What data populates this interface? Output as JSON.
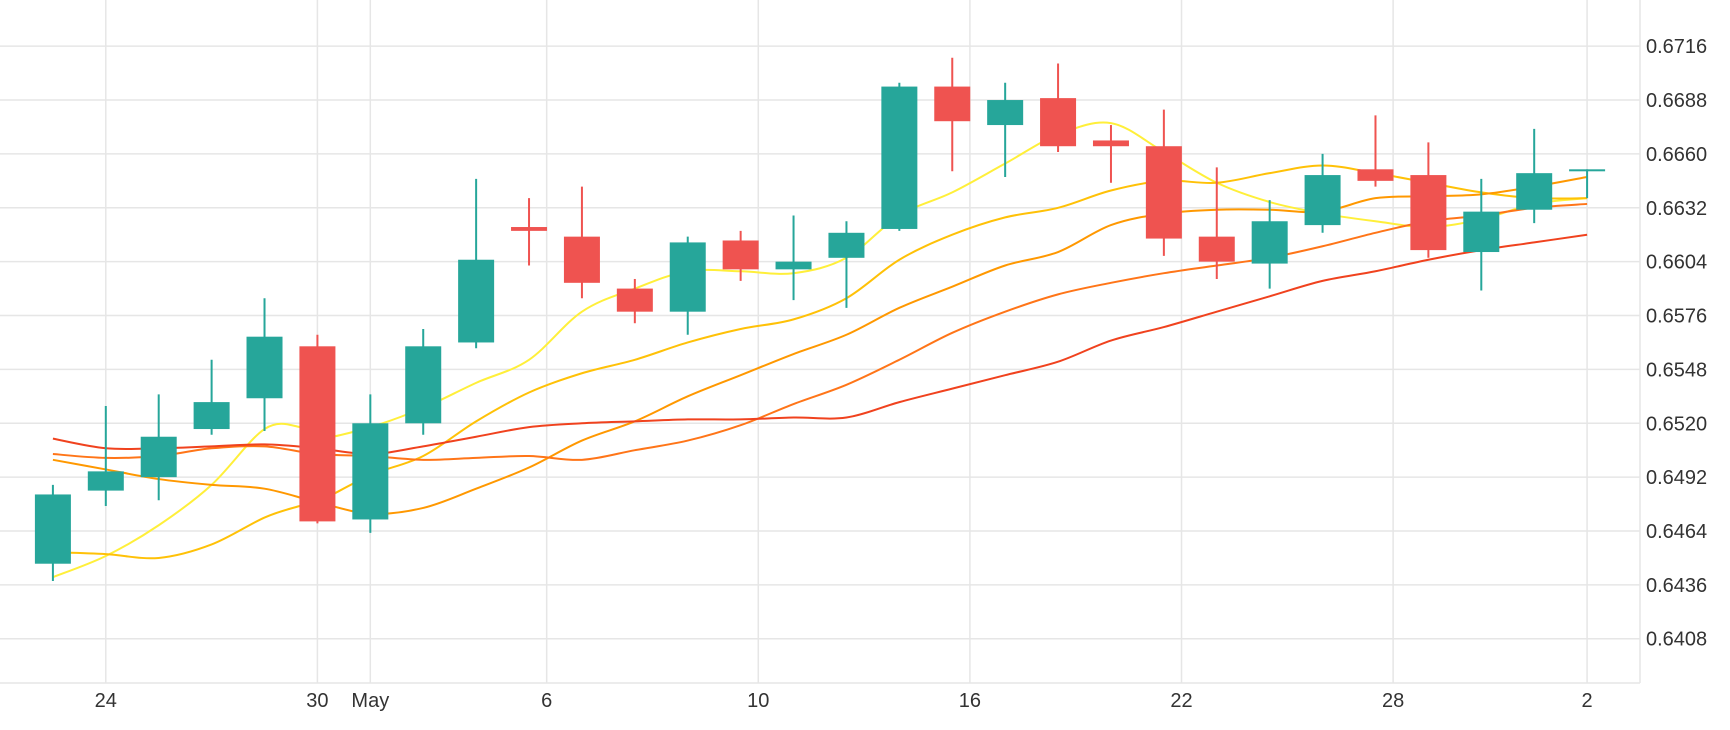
{
  "chart_data": {
    "type": "candlestick",
    "title": "",
    "xlabel": "",
    "ylabel": "",
    "x_ticks": [
      {
        "label": "24",
        "day": 1
      },
      {
        "label": "30",
        "day": 7
      },
      {
        "label": "May",
        "day": 8.5
      },
      {
        "label": "6",
        "day": 13.5
      },
      {
        "label": "10",
        "day": 19.5
      },
      {
        "label": "16",
        "day": 25.5
      },
      {
        "label": "22",
        "day": 31.5
      },
      {
        "label": "28",
        "day": 37.5
      },
      {
        "label": "2",
        "day": 43
      }
    ],
    "x_range": [
      -2,
      44.5
    ],
    "y_ticks": [
      "0.6408",
      "0.6436",
      "0.6464",
      "0.6492",
      "0.6520",
      "0.6548",
      "0.6576",
      "0.6604",
      "0.6632",
      "0.6660",
      "0.6688",
      "0.6716"
    ],
    "ylim": [
      0.6385,
      0.674
    ],
    "grid": true,
    "colors": {
      "up": "#26a69a",
      "down": "#ef5350",
      "grid": "#e6e6e6",
      "text": "#333333"
    },
    "candles": [
      {
        "x": -0.5,
        "o": 0.6447,
        "h": 0.6488,
        "l": 0.6438,
        "c": 0.6483
      },
      {
        "x": 1.0,
        "o": 0.6485,
        "h": 0.6529,
        "l": 0.6477,
        "c": 0.6495
      },
      {
        "x": 2.5,
        "o": 0.6492,
        "h": 0.6535,
        "l": 0.648,
        "c": 0.6513
      },
      {
        "x": 4.0,
        "o": 0.6517,
        "h": 0.6553,
        "l": 0.6514,
        "c": 0.6531
      },
      {
        "x": 5.5,
        "o": 0.6533,
        "h": 0.6585,
        "l": 0.6516,
        "c": 0.6565
      },
      {
        "x": 7.0,
        "o": 0.656,
        "h": 0.6566,
        "l": 0.6468,
        "c": 0.6469
      },
      {
        "x": 8.5,
        "o": 0.647,
        "h": 0.6535,
        "l": 0.6463,
        "c": 0.652
      },
      {
        "x": 10.0,
        "o": 0.652,
        "h": 0.6569,
        "l": 0.6514,
        "c": 0.656
      },
      {
        "x": 11.5,
        "o": 0.6562,
        "h": 0.6647,
        "l": 0.6559,
        "c": 0.6605
      },
      {
        "x": 13.0,
        "o": 0.6622,
        "h": 0.6637,
        "l": 0.6602,
        "c": 0.662
      },
      {
        "x": 14.5,
        "o": 0.6617,
        "h": 0.6643,
        "l": 0.6585,
        "c": 0.6593
      },
      {
        "x": 16.0,
        "o": 0.659,
        "h": 0.6595,
        "l": 0.6572,
        "c": 0.6578
      },
      {
        "x": 17.5,
        "o": 0.6578,
        "h": 0.6617,
        "l": 0.6566,
        "c": 0.6614
      },
      {
        "x": 19.0,
        "o": 0.6615,
        "h": 0.662,
        "l": 0.6594,
        "c": 0.66
      },
      {
        "x": 20.5,
        "o": 0.66,
        "h": 0.6628,
        "l": 0.6584,
        "c": 0.6604
      },
      {
        "x": 22.0,
        "o": 0.6606,
        "h": 0.6625,
        "l": 0.658,
        "c": 0.6619
      },
      {
        "x": 23.5,
        "o": 0.6621,
        "h": 0.6697,
        "l": 0.662,
        "c": 0.6695
      },
      {
        "x": 25.0,
        "o": 0.6695,
        "h": 0.671,
        "l": 0.6651,
        "c": 0.6677
      },
      {
        "x": 26.5,
        "o": 0.6675,
        "h": 0.6697,
        "l": 0.6648,
        "c": 0.6688
      },
      {
        "x": 28.0,
        "o": 0.6689,
        "h": 0.6707,
        "l": 0.6661,
        "c": 0.6664
      },
      {
        "x": 29.5,
        "o": 0.6667,
        "h": 0.6675,
        "l": 0.6645,
        "c": 0.6664
      },
      {
        "x": 31.0,
        "o": 0.6664,
        "h": 0.6683,
        "l": 0.6607,
        "c": 0.6616
      },
      {
        "x": 32.5,
        "o": 0.6617,
        "h": 0.6653,
        "l": 0.6595,
        "c": 0.6604
      },
      {
        "x": 34.0,
        "o": 0.6603,
        "h": 0.6636,
        "l": 0.659,
        "c": 0.6625
      },
      {
        "x": 35.5,
        "o": 0.6623,
        "h": 0.666,
        "l": 0.6619,
        "c": 0.6649
      },
      {
        "x": 37.0,
        "o": 0.6652,
        "h": 0.668,
        "l": 0.6643,
        "c": 0.6646
      },
      {
        "x": 38.5,
        "o": 0.6649,
        "h": 0.6666,
        "l": 0.6606,
        "c": 0.661
      },
      {
        "x": 40.0,
        "o": 0.6609,
        "h": 0.6647,
        "l": 0.6589,
        "c": 0.663
      },
      {
        "x": 41.5,
        "o": 0.6631,
        "h": 0.6673,
        "l": 0.6624,
        "c": 0.665
      },
      {
        "x": 43.0,
        "o": 0.6652,
        "h": 0.6652,
        "l": 0.6637,
        "c": 0.6652
      }
    ],
    "lines": [
      {
        "color": "#ffef3a",
        "points": [
          [
            -0.5,
            0.644
          ],
          [
            1.0,
            0.6451
          ],
          [
            2.5,
            0.6467
          ],
          [
            4.0,
            0.6488
          ],
          [
            5.5,
            0.6517
          ],
          [
            6.5,
            0.6518
          ],
          [
            7.0,
            0.6512
          ],
          [
            8.5,
            0.6518
          ],
          [
            10.0,
            0.6528
          ],
          [
            11.5,
            0.6541
          ],
          [
            13.0,
            0.6553
          ],
          [
            14.5,
            0.6578
          ],
          [
            16.0,
            0.659
          ],
          [
            17.5,
            0.6599
          ],
          [
            19.0,
            0.6599
          ],
          [
            20.5,
            0.6598
          ],
          [
            22.0,
            0.6606
          ],
          [
            23.5,
            0.6628
          ],
          [
            25.0,
            0.664
          ],
          [
            26.5,
            0.6655
          ],
          [
            28.0,
            0.667
          ],
          [
            29.5,
            0.6676
          ],
          [
            31.0,
            0.6661
          ],
          [
            32.5,
            0.6645
          ],
          [
            34.0,
            0.6635
          ],
          [
            35.5,
            0.6629
          ],
          [
            37.0,
            0.6625
          ],
          [
            38.5,
            0.6622
          ],
          [
            40.0,
            0.6626
          ],
          [
            41.5,
            0.6634
          ],
          [
            43.0,
            0.6637
          ]
        ]
      },
      {
        "color": "#ffc107",
        "points": [
          [
            -0.5,
            0.6453
          ],
          [
            1.0,
            0.6452
          ],
          [
            2.5,
            0.645
          ],
          [
            4.0,
            0.6457
          ],
          [
            5.5,
            0.6471
          ],
          [
            6.5,
            0.6477
          ],
          [
            7.0,
            0.6479
          ],
          [
            8.5,
            0.6493
          ],
          [
            10.0,
            0.6503
          ],
          [
            11.5,
            0.6521
          ],
          [
            13.0,
            0.6536
          ],
          [
            14.5,
            0.6546
          ],
          [
            16.0,
            0.6553
          ],
          [
            17.5,
            0.6562
          ],
          [
            19.0,
            0.6569
          ],
          [
            20.5,
            0.6574
          ],
          [
            22.0,
            0.6585
          ],
          [
            23.5,
            0.6605
          ],
          [
            25.0,
            0.6618
          ],
          [
            26.5,
            0.6627
          ],
          [
            28.0,
            0.6632
          ],
          [
            29.5,
            0.6641
          ],
          [
            31.0,
            0.6646
          ],
          [
            32.5,
            0.6645
          ],
          [
            34.0,
            0.665
          ],
          [
            35.5,
            0.6654
          ],
          [
            37.0,
            0.665
          ],
          [
            38.5,
            0.6645
          ],
          [
            40.0,
            0.664
          ],
          [
            41.5,
            0.6637
          ],
          [
            43.0,
            0.6637
          ]
        ]
      },
      {
        "color": "#ff9800",
        "points": [
          [
            -0.5,
            0.6501
          ],
          [
            1.0,
            0.6496
          ],
          [
            2.5,
            0.6491
          ],
          [
            4.0,
            0.6488
          ],
          [
            5.5,
            0.6486
          ],
          [
            7.0,
            0.6479
          ],
          [
            8.5,
            0.6473
          ],
          [
            10.0,
            0.6476
          ],
          [
            11.5,
            0.6486
          ],
          [
            13.0,
            0.6497
          ],
          [
            14.5,
            0.6511
          ],
          [
            16.0,
            0.6521
          ],
          [
            17.5,
            0.6534
          ],
          [
            19.0,
            0.6545
          ],
          [
            20.5,
            0.6556
          ],
          [
            22.0,
            0.6566
          ],
          [
            23.5,
            0.658
          ],
          [
            25.0,
            0.6591
          ],
          [
            26.5,
            0.6602
          ],
          [
            28.0,
            0.6609
          ],
          [
            29.5,
            0.6623
          ],
          [
            31.0,
            0.6629
          ],
          [
            32.5,
            0.6631
          ],
          [
            34.0,
            0.6631
          ],
          [
            35.5,
            0.663
          ],
          [
            37.0,
            0.6637
          ],
          [
            38.5,
            0.6638
          ],
          [
            40.0,
            0.6639
          ],
          [
            41.5,
            0.6643
          ],
          [
            43.0,
            0.6648
          ]
        ]
      },
      {
        "color": "#ff7518",
        "points": [
          [
            -0.5,
            0.6504
          ],
          [
            1.0,
            0.6502
          ],
          [
            2.5,
            0.6503
          ],
          [
            4.0,
            0.6507
          ],
          [
            5.5,
            0.6508
          ],
          [
            7.0,
            0.6504
          ],
          [
            8.5,
            0.6503
          ],
          [
            10.0,
            0.6501
          ],
          [
            11.5,
            0.6502
          ],
          [
            13.0,
            0.6503
          ],
          [
            14.5,
            0.6501
          ],
          [
            16.0,
            0.6506
          ],
          [
            17.5,
            0.6511
          ],
          [
            19.0,
            0.6519
          ],
          [
            20.5,
            0.653
          ],
          [
            22.0,
            0.654
          ],
          [
            23.5,
            0.6553
          ],
          [
            25.0,
            0.6567
          ],
          [
            26.5,
            0.6578
          ],
          [
            28.0,
            0.6587
          ],
          [
            29.5,
            0.6593
          ],
          [
            31.0,
            0.6598
          ],
          [
            32.5,
            0.6602
          ],
          [
            34.0,
            0.6606
          ],
          [
            35.5,
            0.6612
          ],
          [
            37.0,
            0.6619
          ],
          [
            38.5,
            0.6625
          ],
          [
            40.0,
            0.6628
          ],
          [
            41.5,
            0.6632
          ],
          [
            43.0,
            0.6634
          ]
        ]
      },
      {
        "color": "#f0421e",
        "points": [
          [
            -0.5,
            0.6512
          ],
          [
            1.0,
            0.6507
          ],
          [
            2.5,
            0.6507
          ],
          [
            4.0,
            0.6508
          ],
          [
            5.5,
            0.6509
          ],
          [
            7.0,
            0.6507
          ],
          [
            8.5,
            0.6504
          ],
          [
            10.0,
            0.6508
          ],
          [
            11.5,
            0.6513
          ],
          [
            13.0,
            0.6518
          ],
          [
            14.5,
            0.652
          ],
          [
            16.0,
            0.6521
          ],
          [
            17.5,
            0.6522
          ],
          [
            19.0,
            0.6522
          ],
          [
            20.5,
            0.6523
          ],
          [
            22.0,
            0.6523
          ],
          [
            23.5,
            0.6531
          ],
          [
            25.0,
            0.6538
          ],
          [
            26.5,
            0.6545
          ],
          [
            28.0,
            0.6552
          ],
          [
            29.5,
            0.6563
          ],
          [
            31.0,
            0.657
          ],
          [
            32.5,
            0.6578
          ],
          [
            34.0,
            0.6586
          ],
          [
            35.5,
            0.6594
          ],
          [
            37.0,
            0.6599
          ],
          [
            38.5,
            0.6605
          ],
          [
            40.0,
            0.661
          ],
          [
            41.5,
            0.6614
          ],
          [
            43.0,
            0.6618
          ]
        ]
      }
    ]
  }
}
